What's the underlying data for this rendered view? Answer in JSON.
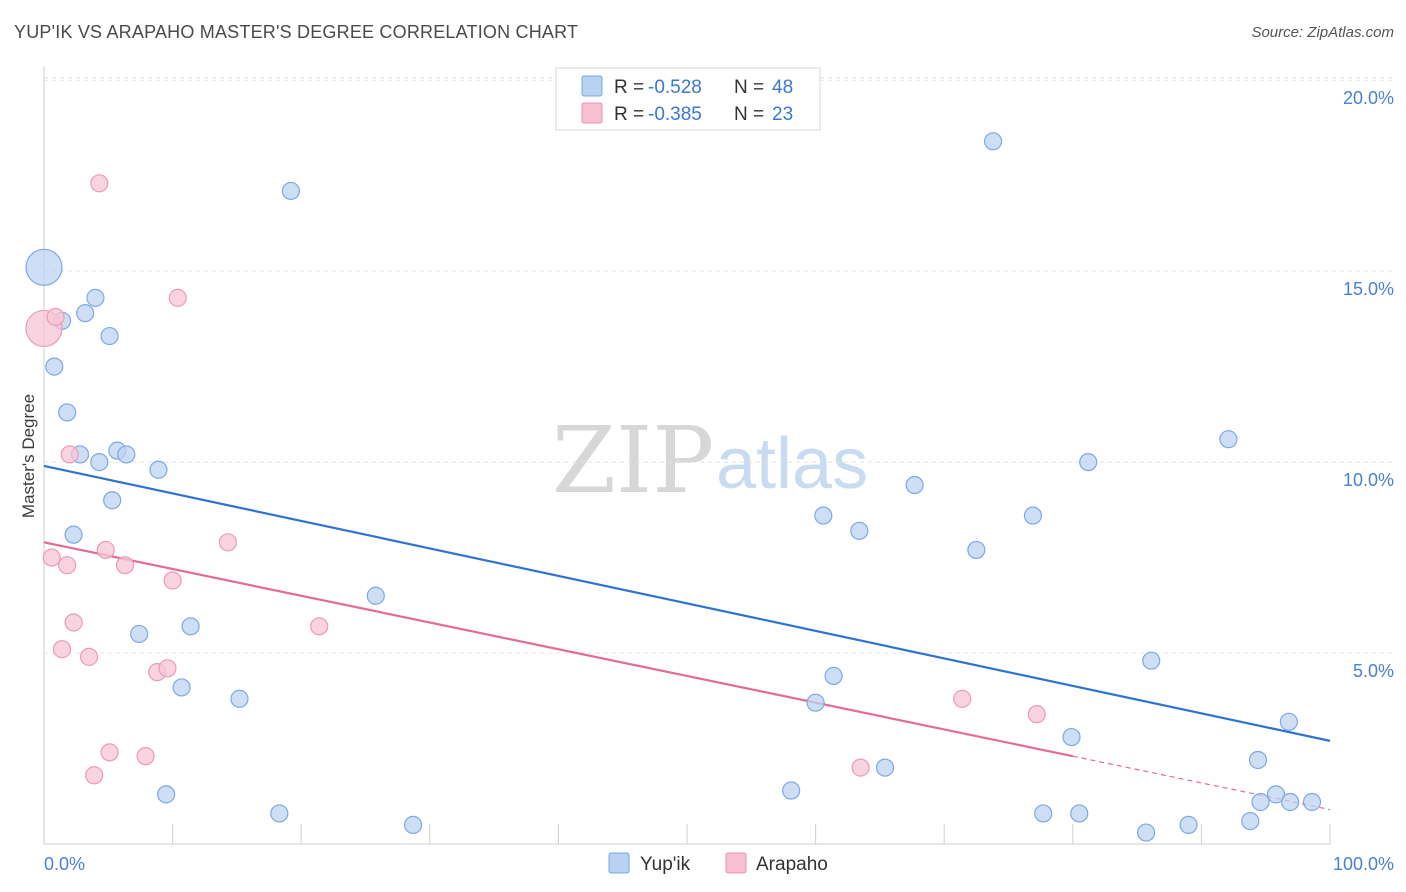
{
  "title": "YUP'IK VS ARAPAHO MASTER'S DEGREE CORRELATION CHART",
  "source": "Source: ZipAtlas.com",
  "watermark": {
    "zip": "ZIP",
    "atlas": "atlas"
  },
  "colors": {
    "blue": "#5b93dc",
    "blue_fill": "#b9d2f2",
    "blue_line": "#2f73d0",
    "pink": "#e9749a",
    "pink_fill": "#f6c0d1",
    "pink_line": "#e36b94",
    "axis_text": "#4a7fd4",
    "grid": "#e2e2e2"
  },
  "legend": {
    "rows": [
      {
        "r_label": "R = ",
        "r_value": "-0.528",
        "n_label": "N = ",
        "n_value": "48",
        "color": "blue"
      },
      {
        "r_label": "R = ",
        "r_value": "-0.385",
        "n_label": "N = ",
        "n_value": "23",
        "color": "pink"
      }
    ]
  },
  "chart_data": {
    "type": "scatter",
    "title": "YUP'IK VS ARAPAHO MASTER'S DEGREE CORRELATION CHART",
    "xlabel": "",
    "ylabel": "Master's Degree",
    "xlim": [
      0,
      100
    ],
    "ylim": [
      0,
      21
    ],
    "x_tick_labels": [
      "0.0%",
      "100.0%"
    ],
    "y_ticks": [
      5,
      10,
      15,
      20
    ],
    "y_tick_labels": [
      "5.0%",
      "10.0%",
      "15.0%",
      "20.0%"
    ],
    "grid": true,
    "legend_position": "top-center",
    "bottom_legend": [
      "Yup'ik",
      "Arapaho"
    ],
    "series": [
      {
        "name": "Yup'ik",
        "color": "#5b93dc",
        "trend": {
          "x": [
            0,
            100
          ],
          "y": [
            9.9,
            2.7
          ]
        },
        "points": [
          {
            "x": 0.0,
            "y": 15.1,
            "big": true
          },
          {
            "x": 0.8,
            "y": 12.5
          },
          {
            "x": 1.4,
            "y": 13.7
          },
          {
            "x": 1.8,
            "y": 11.3
          },
          {
            "x": 2.3,
            "y": 8.1
          },
          {
            "x": 2.8,
            "y": 10.2
          },
          {
            "x": 3.2,
            "y": 13.9
          },
          {
            "x": 4.0,
            "y": 14.3
          },
          {
            "x": 4.3,
            "y": 10.0
          },
          {
            "x": 5.1,
            "y": 13.3
          },
          {
            "x": 5.3,
            "y": 9.0
          },
          {
            "x": 5.7,
            "y": 10.3
          },
          {
            "x": 6.4,
            "y": 10.2
          },
          {
            "x": 7.4,
            "y": 5.5
          },
          {
            "x": 8.9,
            "y": 9.8
          },
          {
            "x": 9.5,
            "y": 1.3
          },
          {
            "x": 10.7,
            "y": 4.1
          },
          {
            "x": 11.4,
            "y": 5.7
          },
          {
            "x": 15.2,
            "y": 3.8
          },
          {
            "x": 18.3,
            "y": 0.8
          },
          {
            "x": 19.2,
            "y": 17.1
          },
          {
            "x": 25.8,
            "y": 6.5
          },
          {
            "x": 28.7,
            "y": 0.5
          },
          {
            "x": 58.1,
            "y": 1.4
          },
          {
            "x": 60.0,
            "y": 3.7
          },
          {
            "x": 60.6,
            "y": 8.6
          },
          {
            "x": 61.4,
            "y": 4.4
          },
          {
            "x": 63.4,
            "y": 8.2
          },
          {
            "x": 65.4,
            "y": 2.0
          },
          {
            "x": 67.7,
            "y": 9.4
          },
          {
            "x": 72.5,
            "y": 7.7
          },
          {
            "x": 73.8,
            "y": 18.4
          },
          {
            "x": 76.9,
            "y": 8.6
          },
          {
            "x": 77.7,
            "y": 0.8
          },
          {
            "x": 79.9,
            "y": 2.8
          },
          {
            "x": 80.5,
            "y": 0.8
          },
          {
            "x": 81.2,
            "y": 10.0
          },
          {
            "x": 85.7,
            "y": 0.3
          },
          {
            "x": 86.1,
            "y": 4.8
          },
          {
            "x": 89.0,
            "y": 0.5
          },
          {
            "x": 92.1,
            "y": 10.6
          },
          {
            "x": 93.8,
            "y": 0.6
          },
          {
            "x": 94.4,
            "y": 2.2
          },
          {
            "x": 94.6,
            "y": 1.1
          },
          {
            "x": 95.8,
            "y": 1.3
          },
          {
            "x": 96.8,
            "y": 3.2
          },
          {
            "x": 96.9,
            "y": 1.1
          },
          {
            "x": 98.6,
            "y": 1.1
          }
        ]
      },
      {
        "name": "Arapaho",
        "color": "#e9749a",
        "trend": {
          "x": [
            0,
            80
          ],
          "y": [
            7.9,
            2.3
          ],
          "dashed_to": {
            "x": 100,
            "y": 0.9
          }
        },
        "points": [
          {
            "x": 0.0,
            "y": 13.5,
            "big": true
          },
          {
            "x": 0.6,
            "y": 7.5
          },
          {
            "x": 0.9,
            "y": 13.8
          },
          {
            "x": 1.4,
            "y": 5.1
          },
          {
            "x": 1.8,
            "y": 7.3
          },
          {
            "x": 2.0,
            "y": 10.2
          },
          {
            "x": 2.3,
            "y": 5.8
          },
          {
            "x": 3.5,
            "y": 4.9
          },
          {
            "x": 3.9,
            "y": 1.8
          },
          {
            "x": 4.3,
            "y": 17.3
          },
          {
            "x": 4.8,
            "y": 7.7
          },
          {
            "x": 5.1,
            "y": 2.4
          },
          {
            "x": 6.3,
            "y": 7.3
          },
          {
            "x": 7.9,
            "y": 2.3
          },
          {
            "x": 8.8,
            "y": 4.5
          },
          {
            "x": 9.6,
            "y": 4.6
          },
          {
            "x": 10.0,
            "y": 6.9
          },
          {
            "x": 10.4,
            "y": 14.3
          },
          {
            "x": 14.3,
            "y": 7.9
          },
          {
            "x": 21.4,
            "y": 5.7
          },
          {
            "x": 63.5,
            "y": 2.0
          },
          {
            "x": 71.4,
            "y": 3.8
          },
          {
            "x": 77.2,
            "y": 3.4
          }
        ]
      }
    ]
  }
}
